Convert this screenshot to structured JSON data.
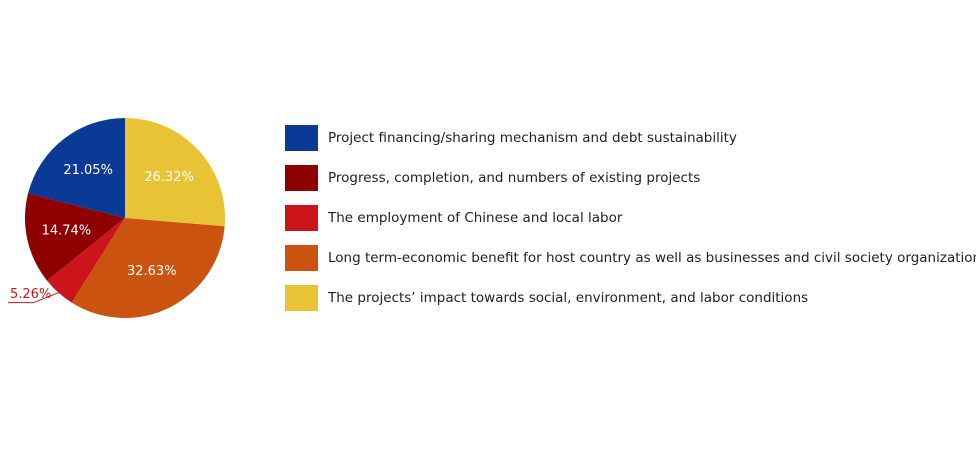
{
  "chart_data": {
    "type": "pie",
    "categories": [
      "Project financing/sharing mechanism and debt sustainability",
      "Progress, completion, and numbers of existing projects",
      "The employment of Chinese and local labor",
      "Long term-economic benefit for host country as well as businesses and civil society organizations involved",
      "The projects’ impact towards social, environment, and labor conditions"
    ],
    "values": [
      21.05,
      14.74,
      5.26,
      32.63,
      26.32
    ],
    "value_labels": [
      "21.05%",
      "14.74%",
      "5.26%",
      "32.63%",
      "26.32%"
    ],
    "colors": [
      "#0b3a96",
      "#8e0000",
      "#cc151b",
      "#c9530f",
      "#e9c336"
    ],
    "legend": "right"
  }
}
